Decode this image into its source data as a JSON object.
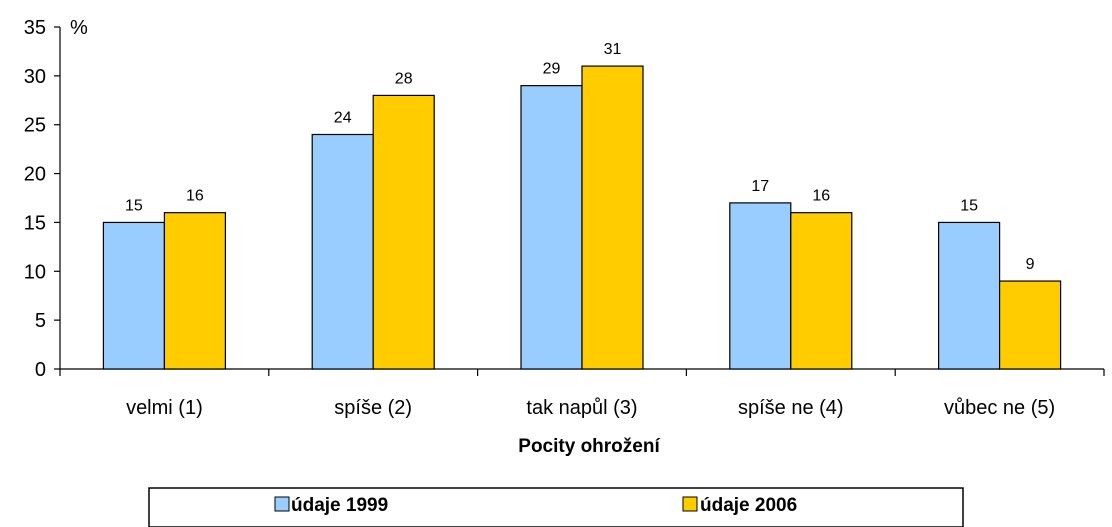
{
  "chart_data": {
    "type": "bar",
    "categories": [
      "velmi (1)",
      "spíše (2)",
      "tak napůl (3)",
      "spíše ne (4)",
      "vůbec ne (5)"
    ],
    "series": [
      {
        "name": "údaje 1999",
        "values": [
          15,
          24,
          29,
          17,
          15
        ],
        "color": "#99ccff"
      },
      {
        "name": "údaje 2006",
        "values": [
          16,
          28,
          31,
          16,
          9
        ],
        "color": "#ffcc00"
      }
    ],
    "title": "",
    "xlabel": "Pocity ohrožení",
    "ylabel": "%",
    "ylim": [
      0,
      35
    ],
    "yticks": [
      0,
      5,
      10,
      15,
      20,
      25,
      30,
      35
    ],
    "grid": false,
    "legend_position": "bottom"
  }
}
